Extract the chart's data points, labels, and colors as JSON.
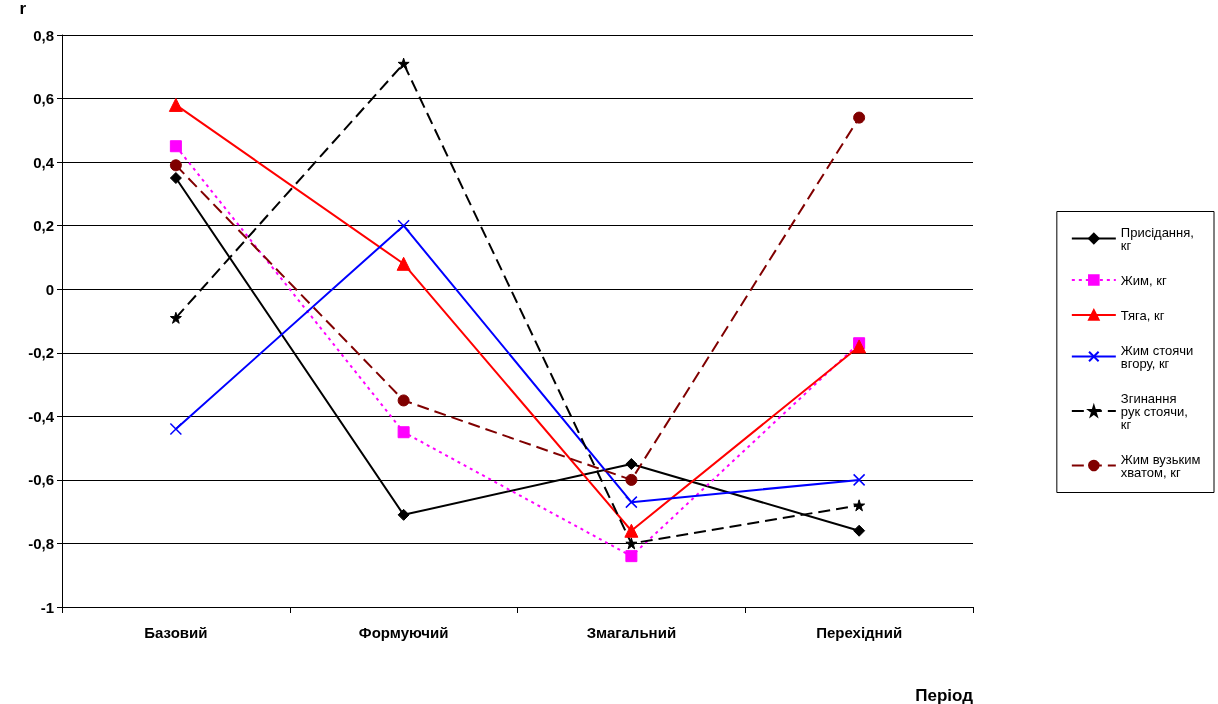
{
  "chart_data": {
    "type": "line",
    "xlabel": "Період",
    "ylabel": "r",
    "categories": [
      "Базовий",
      "Формуючий",
      "Змагальний",
      "Перехідний"
    ],
    "series": [
      {
        "name": "Присідання, кг",
        "color": "#000000",
        "marker": "diamond",
        "line_style": "solid",
        "values": [
          0.35,
          -0.71,
          -0.55,
          -0.76
        ]
      },
      {
        "name": "Жим, кг",
        "color": "#ff00ff",
        "marker": "square",
        "line_style": "dotted",
        "values": [
          0.45,
          -0.45,
          -0.84,
          -0.17
        ]
      },
      {
        "name": "Тяга, кг",
        "color": "#ff0000",
        "marker": "triangle",
        "line_style": "solid",
        "values": [
          0.58,
          0.08,
          -0.76,
          -0.18
        ]
      },
      {
        "name": "Жим стоячи вгору, кг",
        "color": "#0000ff",
        "marker": "cross",
        "line_style": "solid",
        "values": [
          -0.44,
          0.2,
          -0.67,
          -0.6
        ]
      },
      {
        "name": "Згинання рук стоячи, кг",
        "color": "#000000",
        "marker": "star",
        "line_style": "dashed",
        "values": [
          -0.09,
          0.71,
          -0.8,
          -0.68
        ]
      },
      {
        "name": "Жим вузьким хватом, кг",
        "color": "#800000",
        "marker": "circle",
        "line_style": "dashed",
        "values": [
          0.39,
          -0.35,
          -0.6,
          0.54
        ]
      }
    ],
    "ylim": [
      -1,
      0.8
    ],
    "yticks": [
      {
        "value": -1,
        "label": "-1"
      },
      {
        "value": -0.8,
        "label": "-0,8"
      },
      {
        "value": -0.6,
        "label": "-0,6"
      },
      {
        "value": -0.4,
        "label": "-0,4"
      },
      {
        "value": -0.2,
        "label": "-0,2"
      },
      {
        "value": 0,
        "label": "0"
      },
      {
        "value": 0.2,
        "label": "0,2"
      },
      {
        "value": 0.4,
        "label": "0,4"
      },
      {
        "value": 0.6,
        "label": "0,6"
      },
      {
        "value": 0.8,
        "label": "0,8"
      }
    ],
    "grid": "y",
    "legend": "right"
  }
}
